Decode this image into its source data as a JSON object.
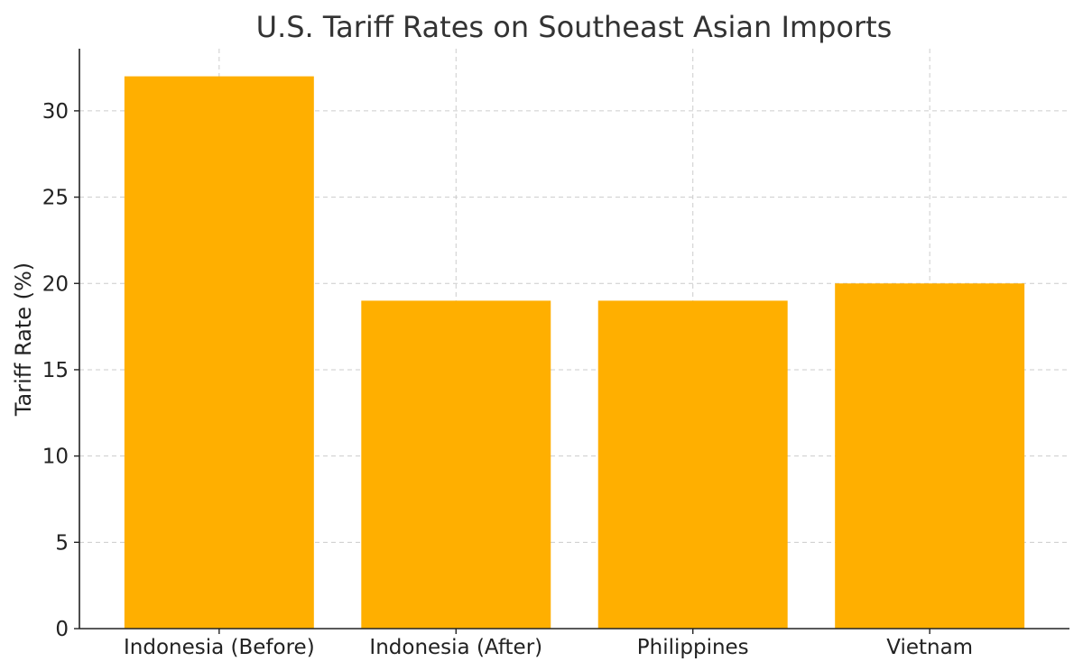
{
  "chart_data": {
    "type": "bar",
    "title": "U.S. Tariff Rates on Southeast Asian Imports",
    "xlabel": "",
    "ylabel": "Tariff Rate (%)",
    "categories": [
      "Indonesia (Before)",
      "Indonesia (After)",
      "Philippines",
      "Vietnam"
    ],
    "values": [
      32,
      19,
      19,
      20
    ],
    "ylim": [
      0,
      33.6
    ],
    "yticks": [
      "0",
      "5",
      "10",
      "15",
      "20",
      "25",
      "30"
    ],
    "grid": true,
    "legend": "none",
    "colors": {
      "bar": "#FFAF00"
    }
  }
}
